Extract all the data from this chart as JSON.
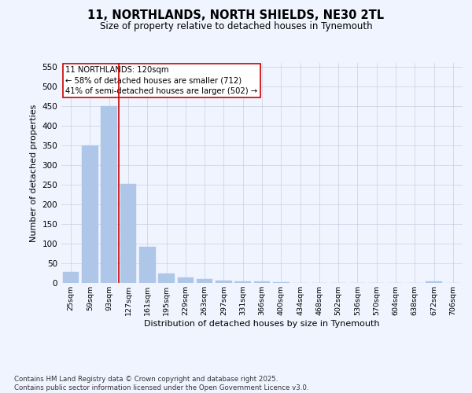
{
  "title_line1": "11, NORTHLANDS, NORTH SHIELDS, NE30 2TL",
  "title_line2": "Size of property relative to detached houses in Tynemouth",
  "xlabel": "Distribution of detached houses by size in Tynemouth",
  "ylabel": "Number of detached properties",
  "categories": [
    "25sqm",
    "59sqm",
    "93sqm",
    "127sqm",
    "161sqm",
    "195sqm",
    "229sqm",
    "263sqm",
    "297sqm",
    "331sqm",
    "366sqm",
    "400sqm",
    "434sqm",
    "468sqm",
    "502sqm",
    "536sqm",
    "570sqm",
    "604sqm",
    "638sqm",
    "672sqm",
    "706sqm"
  ],
  "values": [
    28,
    350,
    450,
    252,
    92,
    25,
    14,
    10,
    7,
    5,
    5,
    3,
    1,
    0,
    0,
    0,
    0,
    0,
    0,
    5,
    0
  ],
  "bar_color": "#aec6e8",
  "bar_edge_color": "#aec6e8",
  "vline_color": "#cc0000",
  "annotation_text": "11 NORTHLANDS: 120sqm\n← 58% of detached houses are smaller (712)\n41% of semi-detached houses are larger (502) →",
  "annotation_box_color": "#ffffff",
  "annotation_box_edge_color": "#cc0000",
  "ylim": [
    0,
    560
  ],
  "yticks": [
    0,
    50,
    100,
    150,
    200,
    250,
    300,
    350,
    400,
    450,
    500,
    550
  ],
  "background_color": "#f0f4ff",
  "plot_bg_color": "#f0f4ff",
  "grid_color": "#c8d0e0",
  "footer_line1": "Contains HM Land Registry data © Crown copyright and database right 2025.",
  "footer_line2": "Contains public sector information licensed under the Open Government Licence v3.0."
}
